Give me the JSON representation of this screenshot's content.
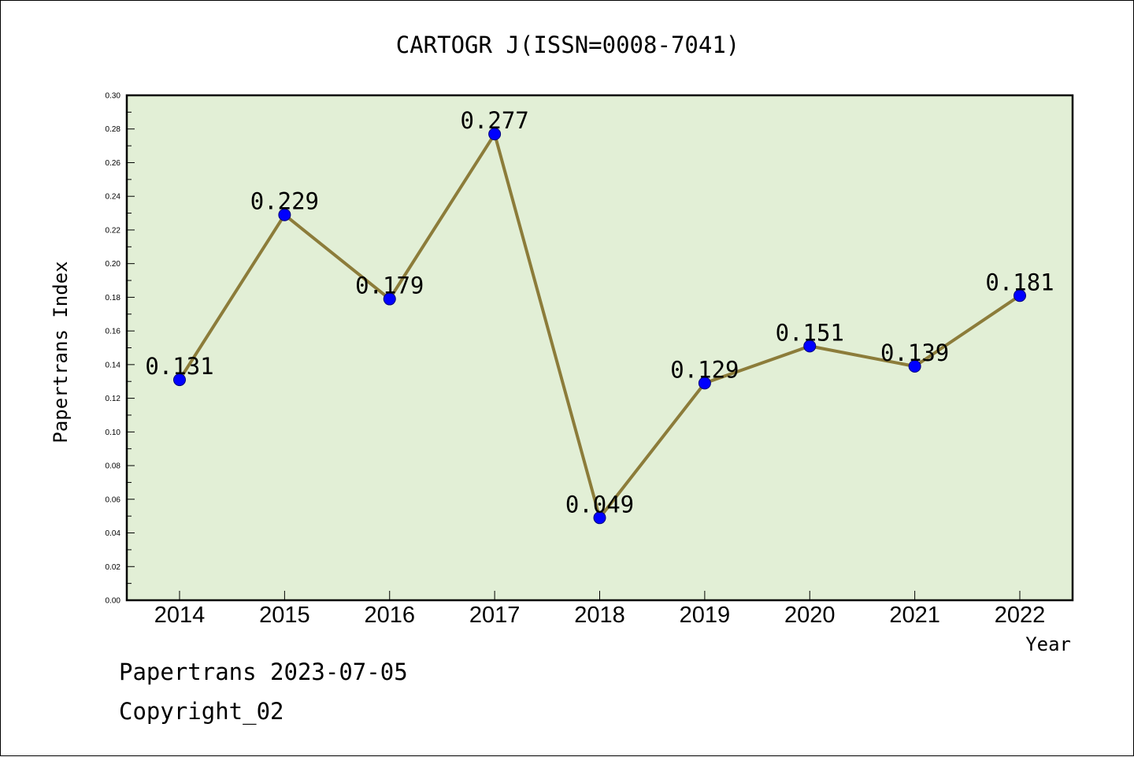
{
  "chart_data": {
    "type": "line",
    "title": "CARTOGR J(ISSN=0008-7041)",
    "xlabel": "Year",
    "ylabel": "Papertrans Index",
    "categories": [
      "2014",
      "2015",
      "2016",
      "2017",
      "2018",
      "2019",
      "2020",
      "2021",
      "2022"
    ],
    "values": [
      0.131,
      0.229,
      0.179,
      0.277,
      0.049,
      0.129,
      0.151,
      0.139,
      0.181
    ],
    "data_labels": [
      "0.131",
      "0.229",
      "0.179",
      "0.277",
      "0.049",
      "0.129",
      "0.151",
      "0.139",
      "0.181"
    ],
    "ylim": [
      0,
      0.3
    ],
    "yticks": [
      "0.00",
      "0.02",
      "0.04",
      "0.06",
      "0.08",
      "0.10",
      "0.12",
      "0.14",
      "0.16",
      "0.18",
      "0.20",
      "0.22",
      "0.24",
      "0.26",
      "0.28",
      "0.30"
    ],
    "grid": false,
    "legend": "none",
    "colors": {
      "plot_background": "#e2efd6",
      "line": "#8c7c3a",
      "marker": "#0000ff",
      "axis": "#000000"
    }
  },
  "footer": {
    "line1": "Papertrans 2023-07-05",
    "line2": "Copyright_02"
  }
}
